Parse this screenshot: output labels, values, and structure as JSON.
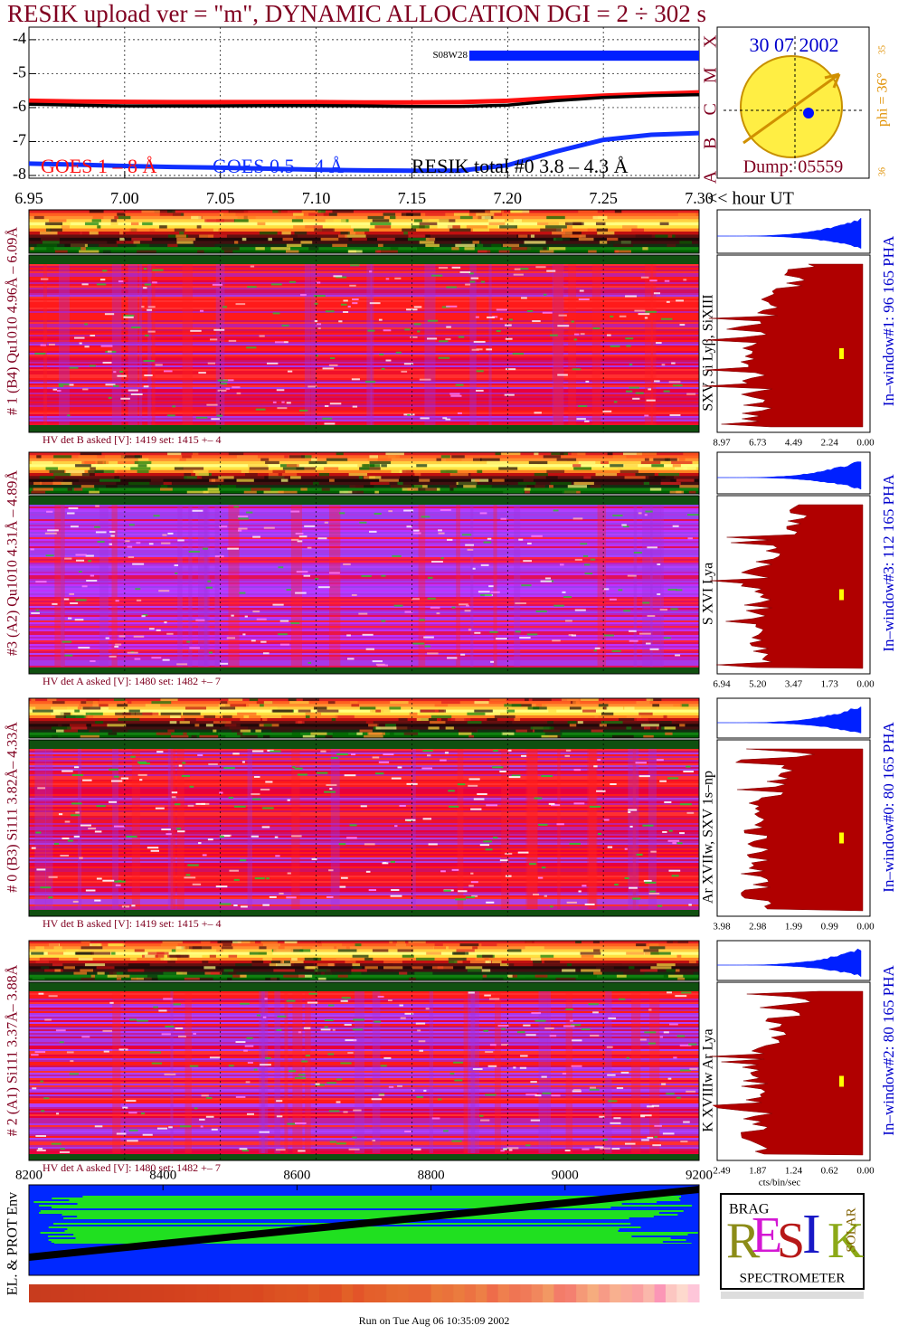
{
  "title": "RESIK upload ver = \"m\", DYNAMIC ALLOCATION  DGI =   2 ÷ 302 s",
  "chart_data": [
    {
      "type": "line",
      "x": [
        6.95,
        6.975,
        7.0,
        7.025,
        7.05,
        7.075,
        7.1,
        7.125,
        7.15,
        7.175,
        7.2,
        7.225,
        7.25,
        7.275,
        7.3
      ],
      "series": [
        {
          "name": "GOES 1 – 8 Å",
          "color": "#ff1010",
          "values": [
            -5.8,
            -5.82,
            -5.83,
            -5.84,
            -5.84,
            -5.84,
            -5.84,
            -5.85,
            -5.85,
            -5.84,
            -5.8,
            -5.72,
            -5.65,
            -5.6,
            -5.55
          ]
        },
        {
          "name": "GOES 0.5 – 4 Å",
          "color": "#1030ff",
          "values": [
            -7.65,
            -7.68,
            -7.72,
            -7.75,
            -7.77,
            -7.8,
            -7.83,
            -7.85,
            -7.86,
            -7.86,
            -7.7,
            -7.3,
            -6.95,
            -6.8,
            -6.75
          ]
        },
        {
          "name": "RESIK total #0  3.8 – 4.3 Å",
          "color": "#000000",
          "values": [
            -5.9,
            -5.93,
            -5.95,
            -5.95,
            -5.95,
            -5.94,
            -5.94,
            -5.95,
            -5.97,
            -5.97,
            -5.93,
            -5.8,
            -5.7,
            -5.65,
            -5.62
          ]
        }
      ],
      "xlim": [
        6.95,
        7.3
      ],
      "xticks": [
        {
          "value": 6.95,
          "label": "6.95"
        },
        {
          "value": 7.0,
          "label": "7.00"
        },
        7.05,
        {
          "value": 7.1,
          "label": "7.10"
        },
        7.15,
        {
          "value": 7.2,
          "label": "7.20"
        },
        7.25,
        {
          "value": 7.3,
          "label": "7.30"
        }
      ],
      "xlabel": "<< hour UT",
      "ylim": [
        -8.08,
        -3.63
      ],
      "yticks": [
        -4,
        -5,
        -6,
        -7,
        -8
      ],
      "flare_classes": [
        "X",
        "M",
        "C",
        "B",
        "A"
      ],
      "annotation": {
        "text": "S08W28",
        "x": [
          7.18,
          7.3
        ],
        "y": [
          -4.32,
          -4.62
        ]
      },
      "grid": true
    },
    {
      "type": "band",
      "ylabel": "EL. & PROT Env",
      "xlim": [
        8200,
        9200
      ],
      "xticks": [
        8200,
        8400,
        8600,
        8800,
        9000,
        9200
      ]
    }
  ],
  "sun": {
    "date": "30 07 2002",
    "phi": "phi = 36°",
    "dump": "Dump: 05559",
    "top_num": "35",
    "bottom_num": "36"
  },
  "panels": [
    {
      "left_label": "# 1 (B4) Qu1010 4.96Å – 6.09Å",
      "lines_label": "SXV, Si Lyβ, SiXIII",
      "window_label": "In–window#1:   96 165  PHA",
      "hv_label": "HV det B asked [V]:  1419  set:  1415  +–    4",
      "hist_ticks": [
        "8.97",
        "6.73",
        "4.49",
        "2.24",
        "0.00"
      ]
    },
    {
      "left_label": "#3 (A2) Qu1010  4.31Å – 4.89Å",
      "lines_label": "S XVI Lya",
      "window_label": "In–window#3:   112 165  PHA",
      "hv_label": "HV det A asked [V]:  1480  set:  1482  +–    7",
      "hist_ticks": [
        "6.94",
        "5.20",
        "3.47",
        "1.73",
        "0.00"
      ]
    },
    {
      "left_label": "# 0 (B3) Si111  3.82Å– 4.33Å",
      "lines_label": "Ar XVIIw,  SXV 1s–np",
      "window_label": "In–window#0:   80 165  PHA",
      "hv_label": "HV det B asked [V]:  1419  set:  1415  +–    4",
      "hist_ticks": [
        "3.98",
        "2.98",
        "1.99",
        "0.99",
        "0.00"
      ]
    },
    {
      "left_label": "# 2 (A1) Si111  3.37Å– 3.88Å",
      "lines_label": "K XVIIIw  Ar Lya",
      "window_label": "In–window#2:   80 165  PHA",
      "hv_label": "HV det A asked [V]:  1480  set:  1482  +–    7",
      "hist_ticks": [
        "2.49",
        "1.87",
        "1.24",
        "0.62",
        "0.00"
      ]
    }
  ],
  "hist_unit": "cts/bin/sec",
  "logo": {
    "letters": [
      "R",
      "E",
      "S",
      "I",
      "K"
    ],
    "brag": "BRAG",
    "solar": "SOLAR",
    "name": "SPECTROMETER"
  },
  "footer": "Run on Tue Aug 06 10:35:09 2002"
}
